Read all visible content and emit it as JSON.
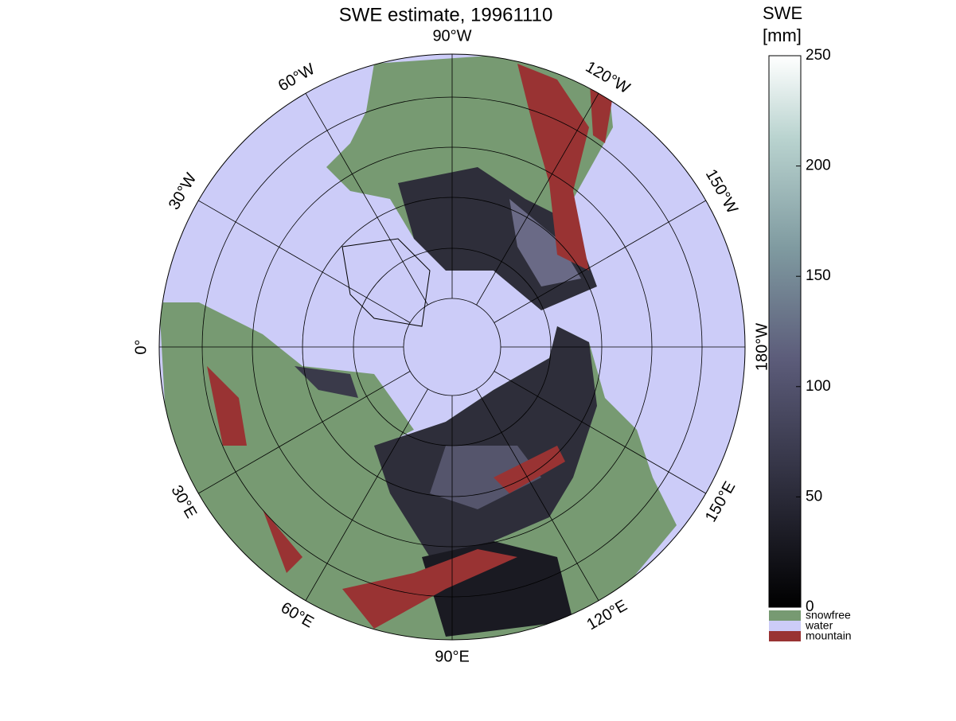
{
  "map": {
    "title": "SWE estimate, 19961110",
    "meridian_labels": [
      "90°W",
      "120°W",
      "150°W",
      "180°W",
      "150°E",
      "120°E",
      "90°E",
      "60°E",
      "30°E",
      "0°",
      "30°W",
      "60°W"
    ],
    "colorbar": {
      "title": [
        "SWE",
        "[mm]"
      ],
      "range": [
        0,
        250
      ],
      "ticks": [
        0,
        50,
        100,
        150,
        200,
        250
      ]
    },
    "legend": [
      {
        "label": "snowfree",
        "color": "#779a72"
      },
      {
        "label": "water",
        "color": "#ccccf8"
      },
      {
        "label": "mountain",
        "color": "#993333"
      }
    ]
  }
}
